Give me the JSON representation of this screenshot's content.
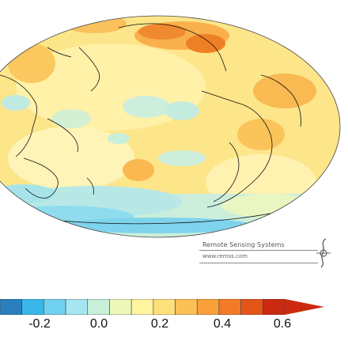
{
  "map": {
    "projection": "global equal-area (ellipse), Pacific-centered",
    "variable_palette": [
      "#2a7fbf",
      "#39b6e8",
      "#70d2f0",
      "#a6e6f0",
      "#c8f0d8",
      "#ecf7b8",
      "#fff4a0",
      "#fde07a",
      "#fdc055",
      "#f9a03a",
      "#f37a26",
      "#e45418",
      "#cc2a10"
    ],
    "credit": {
      "org": "Remote Sensing Systems",
      "url": "www.remss.com"
    }
  },
  "colorbar": {
    "ticks": [
      "-0.2",
      "0.0",
      "0.2",
      "0.4",
      "0.6"
    ]
  }
}
